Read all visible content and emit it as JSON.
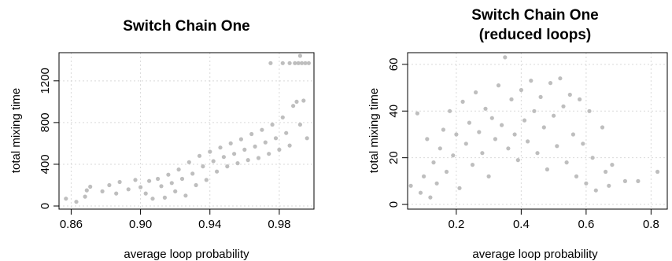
{
  "chart_data": [
    {
      "type": "scatter",
      "title": "Switch Chain One",
      "xlabel": "average loop probability",
      "ylabel": "total mixing time",
      "xlim": [
        0.853,
        1.0
      ],
      "ylim": [
        -30,
        1470
      ],
      "xticks": [
        0.86,
        0.9,
        0.94,
        0.98
      ],
      "xtick_labels": [
        "0.86",
        "0.90",
        "0.94",
        "0.98"
      ],
      "yticks": [
        0,
        400,
        800,
        1200
      ],
      "ytick_labels": [
        "0",
        "400",
        "800",
        "1200"
      ],
      "grid": true,
      "point_color": "#bebebe",
      "series": [
        {
          "values": [
            [
              0.857,
              70
            ],
            [
              0.863,
              40
            ],
            [
              0.868,
              90
            ],
            [
              0.869,
              150
            ],
            [
              0.871,
              185
            ],
            [
              0.878,
              140
            ],
            [
              0.882,
              200
            ],
            [
              0.886,
              120
            ],
            [
              0.888,
              230
            ],
            [
              0.893,
              160
            ],
            [
              0.897,
              250
            ],
            [
              0.9,
              180
            ],
            [
              0.903,
              120
            ],
            [
              0.905,
              240
            ],
            [
              0.907,
              70
            ],
            [
              0.91,
              260
            ],
            [
              0.912,
              190
            ],
            [
              0.914,
              80
            ],
            [
              0.916,
              300
            ],
            [
              0.918,
              220
            ],
            [
              0.92,
              140
            ],
            [
              0.922,
              350
            ],
            [
              0.924,
              260
            ],
            [
              0.926,
              100
            ],
            [
              0.928,
              420
            ],
            [
              0.93,
              310
            ],
            [
              0.932,
              200
            ],
            [
              0.934,
              480
            ],
            [
              0.936,
              380
            ],
            [
              0.938,
              250
            ],
            [
              0.94,
              520
            ],
            [
              0.942,
              430
            ],
            [
              0.944,
              330
            ],
            [
              0.946,
              560
            ],
            [
              0.948,
              470
            ],
            [
              0.95,
              380
            ],
            [
              0.952,
              600
            ],
            [
              0.954,
              500
            ],
            [
              0.956,
              410
            ],
            [
              0.958,
              640
            ],
            [
              0.96,
              540
            ],
            [
              0.962,
              440
            ],
            [
              0.964,
              690
            ],
            [
              0.966,
              570
            ],
            [
              0.968,
              460
            ],
            [
              0.97,
              730
            ],
            [
              0.972,
              610
            ],
            [
              0.974,
              500
            ],
            [
              0.976,
              780
            ],
            [
              0.978,
              650
            ],
            [
              0.98,
              540
            ],
            [
              0.982,
              850
            ],
            [
              0.984,
              700
            ],
            [
              0.986,
              580
            ],
            [
              0.988,
              960
            ],
            [
              0.99,
              1000
            ],
            [
              0.992,
              780
            ],
            [
              0.994,
              1010
            ],
            [
              0.996,
              650
            ],
            [
              0.982,
              1370
            ],
            [
              0.986,
              1370
            ],
            [
              0.989,
              1370
            ],
            [
              0.991,
              1370
            ],
            [
              0.993,
              1370
            ],
            [
              0.995,
              1370
            ],
            [
              0.997,
              1370
            ],
            [
              0.992,
              1440
            ],
            [
              0.975,
              1370
            ]
          ]
        }
      ]
    },
    {
      "type": "scatter",
      "title": "Switch Chain One\n(reduced loops)",
      "title_lines": [
        "Switch Chain One",
        "(reduced loops)"
      ],
      "xlabel": "average loop probability",
      "ylabel": "total mixing time",
      "xlim": [
        0.05,
        0.85
      ],
      "ylim": [
        -2,
        65
      ],
      "xticks": [
        0.2,
        0.4,
        0.6,
        0.8
      ],
      "xtick_labels": [
        "0.2",
        "0.4",
        "0.6",
        "0.8"
      ],
      "yticks": [
        0,
        20,
        40,
        60
      ],
      "ytick_labels": [
        "0",
        "20",
        "40",
        "60"
      ],
      "grid": true,
      "point_color": "#bebebe",
      "series": [
        {
          "values": [
            [
              0.06,
              8
            ],
            [
              0.08,
              39
            ],
            [
              0.09,
              5
            ],
            [
              0.1,
              12
            ],
            [
              0.11,
              28
            ],
            [
              0.12,
              3
            ],
            [
              0.13,
              18
            ],
            [
              0.14,
              9
            ],
            [
              0.15,
              24
            ],
            [
              0.16,
              32
            ],
            [
              0.17,
              14
            ],
            [
              0.18,
              40
            ],
            [
              0.19,
              21
            ],
            [
              0.2,
              30
            ],
            [
              0.21,
              7
            ],
            [
              0.22,
              44
            ],
            [
              0.23,
              26
            ],
            [
              0.24,
              35
            ],
            [
              0.25,
              17
            ],
            [
              0.26,
              48
            ],
            [
              0.27,
              31
            ],
            [
              0.28,
              22
            ],
            [
              0.29,
              41
            ],
            [
              0.3,
              12
            ],
            [
              0.31,
              37
            ],
            [
              0.32,
              28
            ],
            [
              0.33,
              51
            ],
            [
              0.34,
              34
            ],
            [
              0.35,
              63
            ],
            [
              0.36,
              24
            ],
            [
              0.37,
              45
            ],
            [
              0.38,
              30
            ],
            [
              0.39,
              19
            ],
            [
              0.4,
              49
            ],
            [
              0.41,
              36
            ],
            [
              0.42,
              27
            ],
            [
              0.43,
              53
            ],
            [
              0.44,
              40
            ],
            [
              0.45,
              22
            ],
            [
              0.46,
              46
            ],
            [
              0.47,
              33
            ],
            [
              0.48,
              15
            ],
            [
              0.49,
              52
            ],
            [
              0.5,
              38
            ],
            [
              0.51,
              25
            ],
            [
              0.52,
              54
            ],
            [
              0.53,
              42
            ],
            [
              0.54,
              18
            ],
            [
              0.55,
              47
            ],
            [
              0.56,
              30
            ],
            [
              0.57,
              12
            ],
            [
              0.58,
              45
            ],
            [
              0.59,
              26
            ],
            [
              0.6,
              9
            ],
            [
              0.61,
              40
            ],
            [
              0.62,
              20
            ],
            [
              0.63,
              6
            ],
            [
              0.65,
              33
            ],
            [
              0.66,
              14
            ],
            [
              0.67,
              8
            ],
            [
              0.68,
              17
            ],
            [
              0.72,
              10
            ],
            [
              0.76,
              10
            ],
            [
              0.82,
              14
            ]
          ]
        }
      ]
    }
  ]
}
